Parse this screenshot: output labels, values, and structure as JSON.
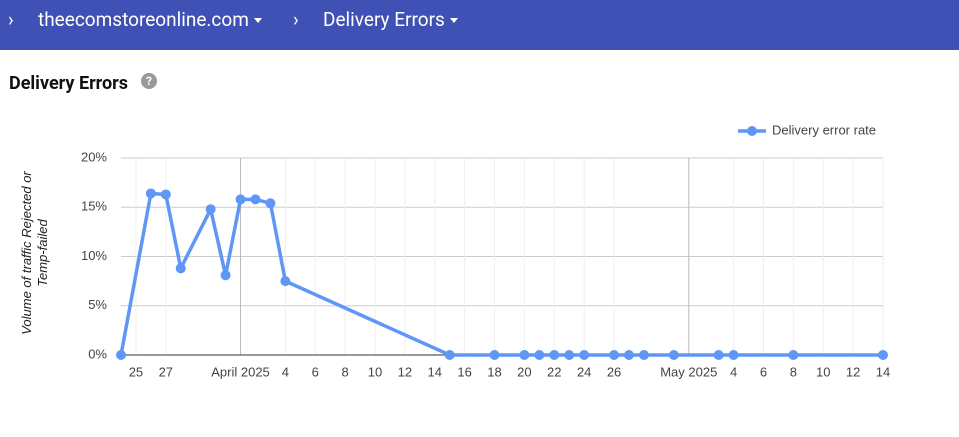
{
  "header": {
    "domain": "theecomstoreonline.com",
    "page": "Delivery Errors"
  },
  "section_title": "Delivery Errors",
  "chart_data": {
    "type": "line",
    "y_label": "Volume of traffic Rejected or Temp-failed",
    "legend_position": "top-right",
    "grid": true,
    "x": [
      "2025-03-24",
      "2025-03-26",
      "2025-03-27",
      "2025-03-28",
      "2025-03-30",
      "2025-03-31",
      "2025-04-01",
      "2025-04-02",
      "2025-04-03",
      "2025-04-04",
      "2025-04-15",
      "2025-04-18",
      "2025-04-20",
      "2025-04-21",
      "2025-04-22",
      "2025-04-23",
      "2025-04-24",
      "2025-04-26",
      "2025-04-27",
      "2025-04-28",
      "2025-04-30",
      "2025-05-03",
      "2025-05-04",
      "2025-05-08",
      "2025-05-14"
    ],
    "series": [
      {
        "name": "Delivery error rate",
        "color": "#5e97f6",
        "values": [
          0,
          16.4,
          16.3,
          8.8,
          14.8,
          8.1,
          15.8,
          15.8,
          15.4,
          7.5,
          0,
          0,
          0,
          0,
          0,
          0,
          0,
          0,
          0,
          0,
          0,
          0,
          0,
          0,
          0
        ]
      }
    ],
    "xlim": [
      "2025-03-24",
      "2025-05-14"
    ],
    "xticks": [
      {
        "value": "2025-03-25",
        "label": "25"
      },
      {
        "value": "2025-03-27",
        "label": "27"
      },
      {
        "value": "2025-04-01",
        "label": "April 2025"
      },
      {
        "value": "2025-04-04",
        "label": "4"
      },
      {
        "value": "2025-04-06",
        "label": "6"
      },
      {
        "value": "2025-04-08",
        "label": "8"
      },
      {
        "value": "2025-04-10",
        "label": "10"
      },
      {
        "value": "2025-04-12",
        "label": "12"
      },
      {
        "value": "2025-04-14",
        "label": "14"
      },
      {
        "value": "2025-04-16",
        "label": "16"
      },
      {
        "value": "2025-04-18",
        "label": "18"
      },
      {
        "value": "2025-04-20",
        "label": "20"
      },
      {
        "value": "2025-04-22",
        "label": "22"
      },
      {
        "value": "2025-04-24",
        "label": "24"
      },
      {
        "value": "2025-04-26",
        "label": "26"
      },
      {
        "value": "2025-05-01",
        "label": "May 2025"
      },
      {
        "value": "2025-05-04",
        "label": "4"
      },
      {
        "value": "2025-05-06",
        "label": "6"
      },
      {
        "value": "2025-05-08",
        "label": "8"
      },
      {
        "value": "2025-05-10",
        "label": "10"
      },
      {
        "value": "2025-05-12",
        "label": "12"
      },
      {
        "value": "2025-05-14",
        "label": "14"
      }
    ],
    "ylim": [
      0,
      20
    ],
    "yticks": [
      {
        "value": 0,
        "label": "0%"
      },
      {
        "value": 5,
        "label": "5%"
      },
      {
        "value": 10,
        "label": "10%"
      },
      {
        "value": 15,
        "label": "15%"
      },
      {
        "value": 20,
        "label": "20%"
      }
    ]
  }
}
